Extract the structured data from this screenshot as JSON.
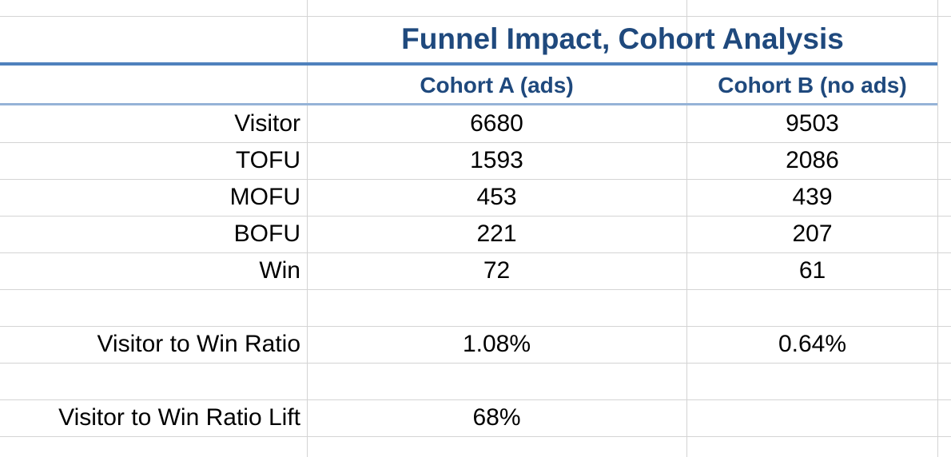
{
  "sheet": {
    "title": "Funnel Impact, Cohort Analysis",
    "columns": [
      "Cohort A (ads)",
      "Cohort B (no ads)"
    ],
    "rows": [
      {
        "label": "Visitor",
        "a": "6680",
        "b": "9503"
      },
      {
        "label": "TOFU",
        "a": "1593",
        "b": "2086"
      },
      {
        "label": "MOFU",
        "a": "453",
        "b": "439"
      },
      {
        "label": "BOFU",
        "a": "221",
        "b": "207"
      },
      {
        "label": "Win",
        "a": "72",
        "b": "61"
      },
      {
        "label": "",
        "a": "",
        "b": ""
      },
      {
        "label": "Visitor to Win Ratio",
        "a": "1.08%",
        "b": "0.64%"
      },
      {
        "label": "",
        "a": "",
        "b": ""
      },
      {
        "label": "Visitor to Win Ratio Lift",
        "a": "68%",
        "b": ""
      }
    ],
    "colors": {
      "header_text": "#1f497d",
      "accent_rule": "#4f81bd",
      "light_rule": "#95b3d7",
      "gridline": "#d4d4d4"
    }
  }
}
